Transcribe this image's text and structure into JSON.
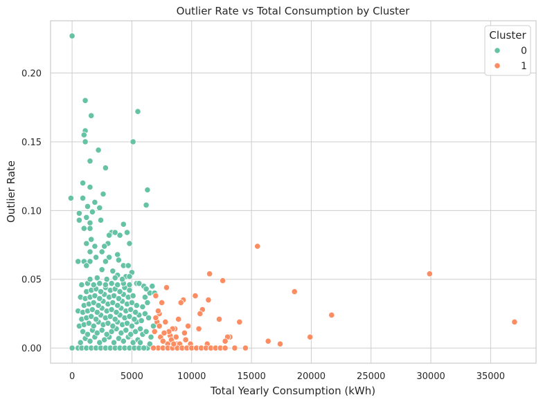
{
  "chart_data": {
    "type": "scatter",
    "title": "Outlier Rate vs Total Consumption by Cluster",
    "xlabel": "Total Yearly Consumption (kWh)",
    "ylabel": "Outlier Rate",
    "xlim": [
      -1800,
      38800
    ],
    "ylim": [
      -0.011,
      0.238
    ],
    "xticks": [
      0,
      5000,
      10000,
      15000,
      20000,
      25000,
      30000,
      35000
    ],
    "xtick_labels": [
      "0",
      "5000",
      "10000",
      "15000",
      "20000",
      "25000",
      "30000",
      "35000"
    ],
    "yticks": [
      0.0,
      0.05,
      0.1,
      0.15,
      0.2
    ],
    "ytick_labels": [
      "0.00",
      "0.05",
      "0.10",
      "0.15",
      "0.20"
    ],
    "grid": true,
    "legend": {
      "title": "Cluster",
      "position": "top-right"
    },
    "series": [
      {
        "name": "0",
        "color": "#66c2a5",
        "points": [
          [
            0,
            0.227
          ],
          [
            -100,
            0.109
          ],
          [
            1100,
            0.18
          ],
          [
            1600,
            0.169
          ],
          [
            1100,
            0.158
          ],
          [
            1000,
            0.155
          ],
          [
            1100,
            0.15
          ],
          [
            2200,
            0.144
          ],
          [
            1500,
            0.136
          ],
          [
            2800,
            0.131
          ],
          [
            900,
            0.12
          ],
          [
            1500,
            0.117
          ],
          [
            2600,
            0.112
          ],
          [
            900,
            0.109
          ],
          [
            1900,
            0.106
          ],
          [
            1300,
            0.103
          ],
          [
            2300,
            0.102
          ],
          [
            1700,
            0.099
          ],
          [
            600,
            0.098
          ],
          [
            1200,
            0.095
          ],
          [
            600,
            0.093
          ],
          [
            1500,
            0.091
          ],
          [
            2400,
            0.093
          ],
          [
            4300,
            0.09
          ],
          [
            1000,
            0.087
          ],
          [
            1500,
            0.087
          ],
          [
            4600,
            0.084
          ],
          [
            3300,
            0.084
          ],
          [
            3600,
            0.084
          ],
          [
            4000,
            0.082
          ],
          [
            3100,
            0.082
          ],
          [
            1600,
            0.079
          ],
          [
            1200,
            0.076
          ],
          [
            3000,
            0.076
          ],
          [
            2700,
            0.074
          ],
          [
            1900,
            0.074
          ],
          [
            4800,
            0.076
          ],
          [
            1500,
            0.07
          ],
          [
            2500,
            0.07
          ],
          [
            3800,
            0.068
          ],
          [
            3100,
            0.066
          ],
          [
            2000,
            0.066
          ],
          [
            3900,
            0.064
          ],
          [
            500,
            0.063
          ],
          [
            1000,
            0.063
          ],
          [
            1500,
            0.063
          ],
          [
            2800,
            0.063
          ],
          [
            4300,
            0.06
          ],
          [
            4700,
            0.06
          ],
          [
            1200,
            0.06
          ],
          [
            2500,
            0.057
          ],
          [
            3400,
            0.056
          ],
          [
            5000,
            0.055
          ],
          [
            3800,
            0.053
          ],
          [
            4500,
            0.052
          ],
          [
            4800,
            0.052
          ],
          [
            6000,
            0.045
          ],
          [
            6500,
            0.04
          ],
          [
            6300,
            0.033
          ],
          [
            5400,
            0.047
          ],
          [
            5600,
            0.047
          ],
          [
            6200,
            0.043
          ],
          [
            6900,
            0.04
          ],
          [
            6700,
            0.045
          ],
          [
            6100,
            0.025
          ],
          [
            6400,
            0.022
          ],
          [
            6800,
            0.016
          ],
          [
            6600,
            0.008
          ],
          [
            5900,
            0.01
          ],
          [
            6300,
            0.0
          ],
          [
            5100,
            0.15
          ],
          [
            5500,
            0.172
          ],
          [
            6300,
            0.115
          ],
          [
            6200,
            0.104
          ],
          [
            0,
            0.0
          ],
          [
            500,
            0.0
          ],
          [
            800,
            0.0
          ],
          [
            1200,
            0.0
          ],
          [
            1600,
            0.0
          ],
          [
            2000,
            0.0
          ],
          [
            2400,
            0.0
          ],
          [
            2800,
            0.0
          ],
          [
            3200,
            0.0
          ],
          [
            3600,
            0.0
          ],
          [
            4000,
            0.0
          ],
          [
            4400,
            0.0
          ],
          [
            4800,
            0.0
          ],
          [
            5200,
            0.0
          ],
          [
            5600,
            0.0
          ],
          [
            6000,
            0.0
          ],
          [
            700,
            0.004
          ],
          [
            1100,
            0.007
          ],
          [
            1500,
            0.005
          ],
          [
            1900,
            0.008
          ],
          [
            2300,
            0.004
          ],
          [
            2700,
            0.006
          ],
          [
            3100,
            0.008
          ],
          [
            3500,
            0.004
          ],
          [
            3900,
            0.007
          ],
          [
            4300,
            0.005
          ],
          [
            4700,
            0.008
          ],
          [
            5100,
            0.004
          ],
          [
            5500,
            0.006
          ],
          [
            900,
            0.012
          ],
          [
            1300,
            0.01
          ],
          [
            1700,
            0.013
          ],
          [
            2100,
            0.011
          ],
          [
            2500,
            0.013
          ],
          [
            2900,
            0.01
          ],
          [
            3300,
            0.012
          ],
          [
            3700,
            0.014
          ],
          [
            4100,
            0.011
          ],
          [
            4500,
            0.013
          ],
          [
            4900,
            0.01
          ],
          [
            5300,
            0.012
          ],
          [
            5700,
            0.014
          ],
          [
            600,
            0.016
          ],
          [
            1000,
            0.017
          ],
          [
            1400,
            0.018
          ],
          [
            1800,
            0.016
          ],
          [
            2200,
            0.019
          ],
          [
            2600,
            0.017
          ],
          [
            3000,
            0.018
          ],
          [
            3400,
            0.016
          ],
          [
            3800,
            0.019
          ],
          [
            4200,
            0.017
          ],
          [
            4600,
            0.018
          ],
          [
            5000,
            0.016
          ],
          [
            5400,
            0.019
          ],
          [
            800,
            0.021
          ],
          [
            1200,
            0.022
          ],
          [
            1600,
            0.023
          ],
          [
            2000,
            0.021
          ],
          [
            2400,
            0.024
          ],
          [
            2800,
            0.022
          ],
          [
            3200,
            0.023
          ],
          [
            3600,
            0.021
          ],
          [
            4000,
            0.024
          ],
          [
            4400,
            0.022
          ],
          [
            4800,
            0.023
          ],
          [
            5200,
            0.021
          ],
          [
            5600,
            0.024
          ],
          [
            500,
            0.027
          ],
          [
            900,
            0.026
          ],
          [
            1300,
            0.027
          ],
          [
            1700,
            0.028
          ],
          [
            2100,
            0.026
          ],
          [
            2500,
            0.029
          ],
          [
            2900,
            0.027
          ],
          [
            3300,
            0.028
          ],
          [
            3700,
            0.026
          ],
          [
            4100,
            0.029
          ],
          [
            4500,
            0.027
          ],
          [
            4900,
            0.028
          ],
          [
            5300,
            0.026
          ],
          [
            1000,
            0.031
          ],
          [
            1400,
            0.032
          ],
          [
            1800,
            0.033
          ],
          [
            2200,
            0.031
          ],
          [
            2600,
            0.034
          ],
          [
            3000,
            0.032
          ],
          [
            3400,
            0.033
          ],
          [
            3800,
            0.031
          ],
          [
            4200,
            0.034
          ],
          [
            4600,
            0.032
          ],
          [
            5000,
            0.033
          ],
          [
            5400,
            0.031
          ],
          [
            700,
            0.037
          ],
          [
            1100,
            0.036
          ],
          [
            1500,
            0.037
          ],
          [
            1900,
            0.038
          ],
          [
            2300,
            0.036
          ],
          [
            2700,
            0.039
          ],
          [
            3100,
            0.037
          ],
          [
            3500,
            0.038
          ],
          [
            3900,
            0.036
          ],
          [
            4300,
            0.039
          ],
          [
            4700,
            0.037
          ],
          [
            5100,
            0.038
          ],
          [
            1200,
            0.041
          ],
          [
            1600,
            0.042
          ],
          [
            2000,
            0.043
          ],
          [
            2400,
            0.041
          ],
          [
            2800,
            0.044
          ],
          [
            3200,
            0.042
          ],
          [
            3600,
            0.043
          ],
          [
            4000,
            0.041
          ],
          [
            4400,
            0.044
          ],
          [
            4800,
            0.042
          ],
          [
            800,
            0.046
          ],
          [
            1300,
            0.047
          ],
          [
            1800,
            0.046
          ],
          [
            2300,
            0.047
          ],
          [
            2800,
            0.046
          ],
          [
            3300,
            0.047
          ],
          [
            3800,
            0.046
          ],
          [
            4300,
            0.047
          ],
          [
            4800,
            0.046
          ],
          [
            1500,
            0.05
          ],
          [
            2100,
            0.051
          ],
          [
            2900,
            0.05
          ],
          [
            3600,
            0.051
          ],
          [
            4200,
            0.05
          ],
          [
            5800,
            0.02
          ],
          [
            6200,
            0.012
          ],
          [
            5900,
            0.03
          ],
          [
            6100,
            0.037
          ],
          [
            5700,
            0.004
          ],
          [
            6500,
            0.003
          ]
        ]
      },
      {
        "name": "1",
        "color": "#fc8d62",
        "points": [
          [
            37000,
            0.019
          ],
          [
            29900,
            0.054
          ],
          [
            15500,
            0.074
          ],
          [
            21700,
            0.024
          ],
          [
            19900,
            0.008
          ],
          [
            18600,
            0.041
          ],
          [
            17400,
            0.003
          ],
          [
            16400,
            0.005
          ],
          [
            14500,
            0.0
          ],
          [
            14000,
            0.019
          ],
          [
            13200,
            0.008
          ],
          [
            13000,
            0.008
          ],
          [
            12800,
            0.005
          ],
          [
            12600,
            0.049
          ],
          [
            12300,
            0.021
          ],
          [
            11500,
            0.054
          ],
          [
            11400,
            0.035
          ],
          [
            11300,
            0.003
          ],
          [
            10900,
            0.028
          ],
          [
            10700,
            0.025
          ],
          [
            10600,
            0.014
          ],
          [
            10300,
            0.038
          ],
          [
            9700,
            0.016
          ],
          [
            9300,
            0.035
          ],
          [
            9100,
            0.033
          ],
          [
            8900,
            0.021
          ],
          [
            8800,
            0.003
          ],
          [
            8600,
            0.014
          ],
          [
            8400,
            0.014
          ],
          [
            8200,
            0.009
          ],
          [
            8000,
            0.003
          ],
          [
            7900,
            0.044
          ],
          [
            7800,
            0.019
          ],
          [
            7500,
            0.033
          ],
          [
            7300,
            0.025
          ],
          [
            7200,
            0.027
          ],
          [
            7000,
            0.038
          ],
          [
            7100,
            0.019
          ],
          [
            7400,
            0.008
          ],
          [
            7600,
            0.005
          ],
          [
            8100,
            0.012
          ],
          [
            8300,
            0.006
          ],
          [
            8700,
            0.008
          ],
          [
            9000,
            0.003
          ],
          [
            9500,
            0.006
          ],
          [
            9900,
            0.003
          ],
          [
            6900,
            0.012
          ],
          [
            7000,
            0.022
          ],
          [
            7200,
            0.0
          ],
          [
            7600,
            0.0
          ],
          [
            8000,
            0.0
          ],
          [
            8400,
            0.0
          ],
          [
            8800,
            0.0
          ],
          [
            9200,
            0.0
          ],
          [
            9600,
            0.0
          ],
          [
            10000,
            0.0
          ],
          [
            10400,
            0.0
          ],
          [
            10800,
            0.0
          ],
          [
            11200,
            0.0
          ],
          [
            11600,
            0.0
          ],
          [
            12000,
            0.0
          ],
          [
            12400,
            0.0
          ],
          [
            12800,
            0.0
          ],
          [
            13600,
            0.0
          ],
          [
            7300,
            0.016
          ],
          [
            7700,
            0.011
          ],
          [
            8500,
            0.003
          ],
          [
            9400,
            0.011
          ],
          [
            6800,
            0.0
          ]
        ]
      }
    ]
  }
}
